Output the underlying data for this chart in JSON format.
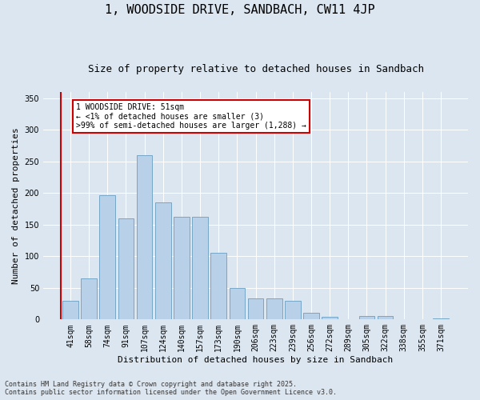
{
  "title": "1, WOODSIDE DRIVE, SANDBACH, CW11 4JP",
  "subtitle": "Size of property relative to detached houses in Sandbach",
  "xlabel": "Distribution of detached houses by size in Sandbach",
  "ylabel": "Number of detached properties",
  "categories": [
    "41sqm",
    "58sqm",
    "74sqm",
    "91sqm",
    "107sqm",
    "124sqm",
    "140sqm",
    "157sqm",
    "173sqm",
    "190sqm",
    "206sqm",
    "223sqm",
    "239sqm",
    "256sqm",
    "272sqm",
    "289sqm",
    "305sqm",
    "322sqm",
    "338sqm",
    "355sqm",
    "371sqm"
  ],
  "values": [
    30,
    65,
    197,
    160,
    260,
    185,
    163,
    163,
    106,
    50,
    33,
    33,
    30,
    10,
    4,
    0,
    5,
    5,
    0,
    0,
    2
  ],
  "bar_color": "#b8d0e8",
  "bar_edge_color": "#6a9ec0",
  "marker_color": "#cc0000",
  "ylim": [
    0,
    360
  ],
  "yticks": [
    0,
    50,
    100,
    150,
    200,
    250,
    300,
    350
  ],
  "annotation_text": "1 WOODSIDE DRIVE: 51sqm\n← <1% of detached houses are smaller (3)\n>99% of semi-detached houses are larger (1,288) →",
  "annotation_box_color": "#ffffff",
  "annotation_box_edge": "#cc0000",
  "footer_line1": "Contains HM Land Registry data © Crown copyright and database right 2025.",
  "footer_line2": "Contains public sector information licensed under the Open Government Licence v3.0.",
  "background_color": "#dce6f0",
  "plot_bg_color": "#dce6f0",
  "title_fontsize": 11,
  "subtitle_fontsize": 9,
  "tick_fontsize": 7,
  "label_fontsize": 8,
  "annotation_fontsize": 7,
  "footer_fontsize": 6
}
